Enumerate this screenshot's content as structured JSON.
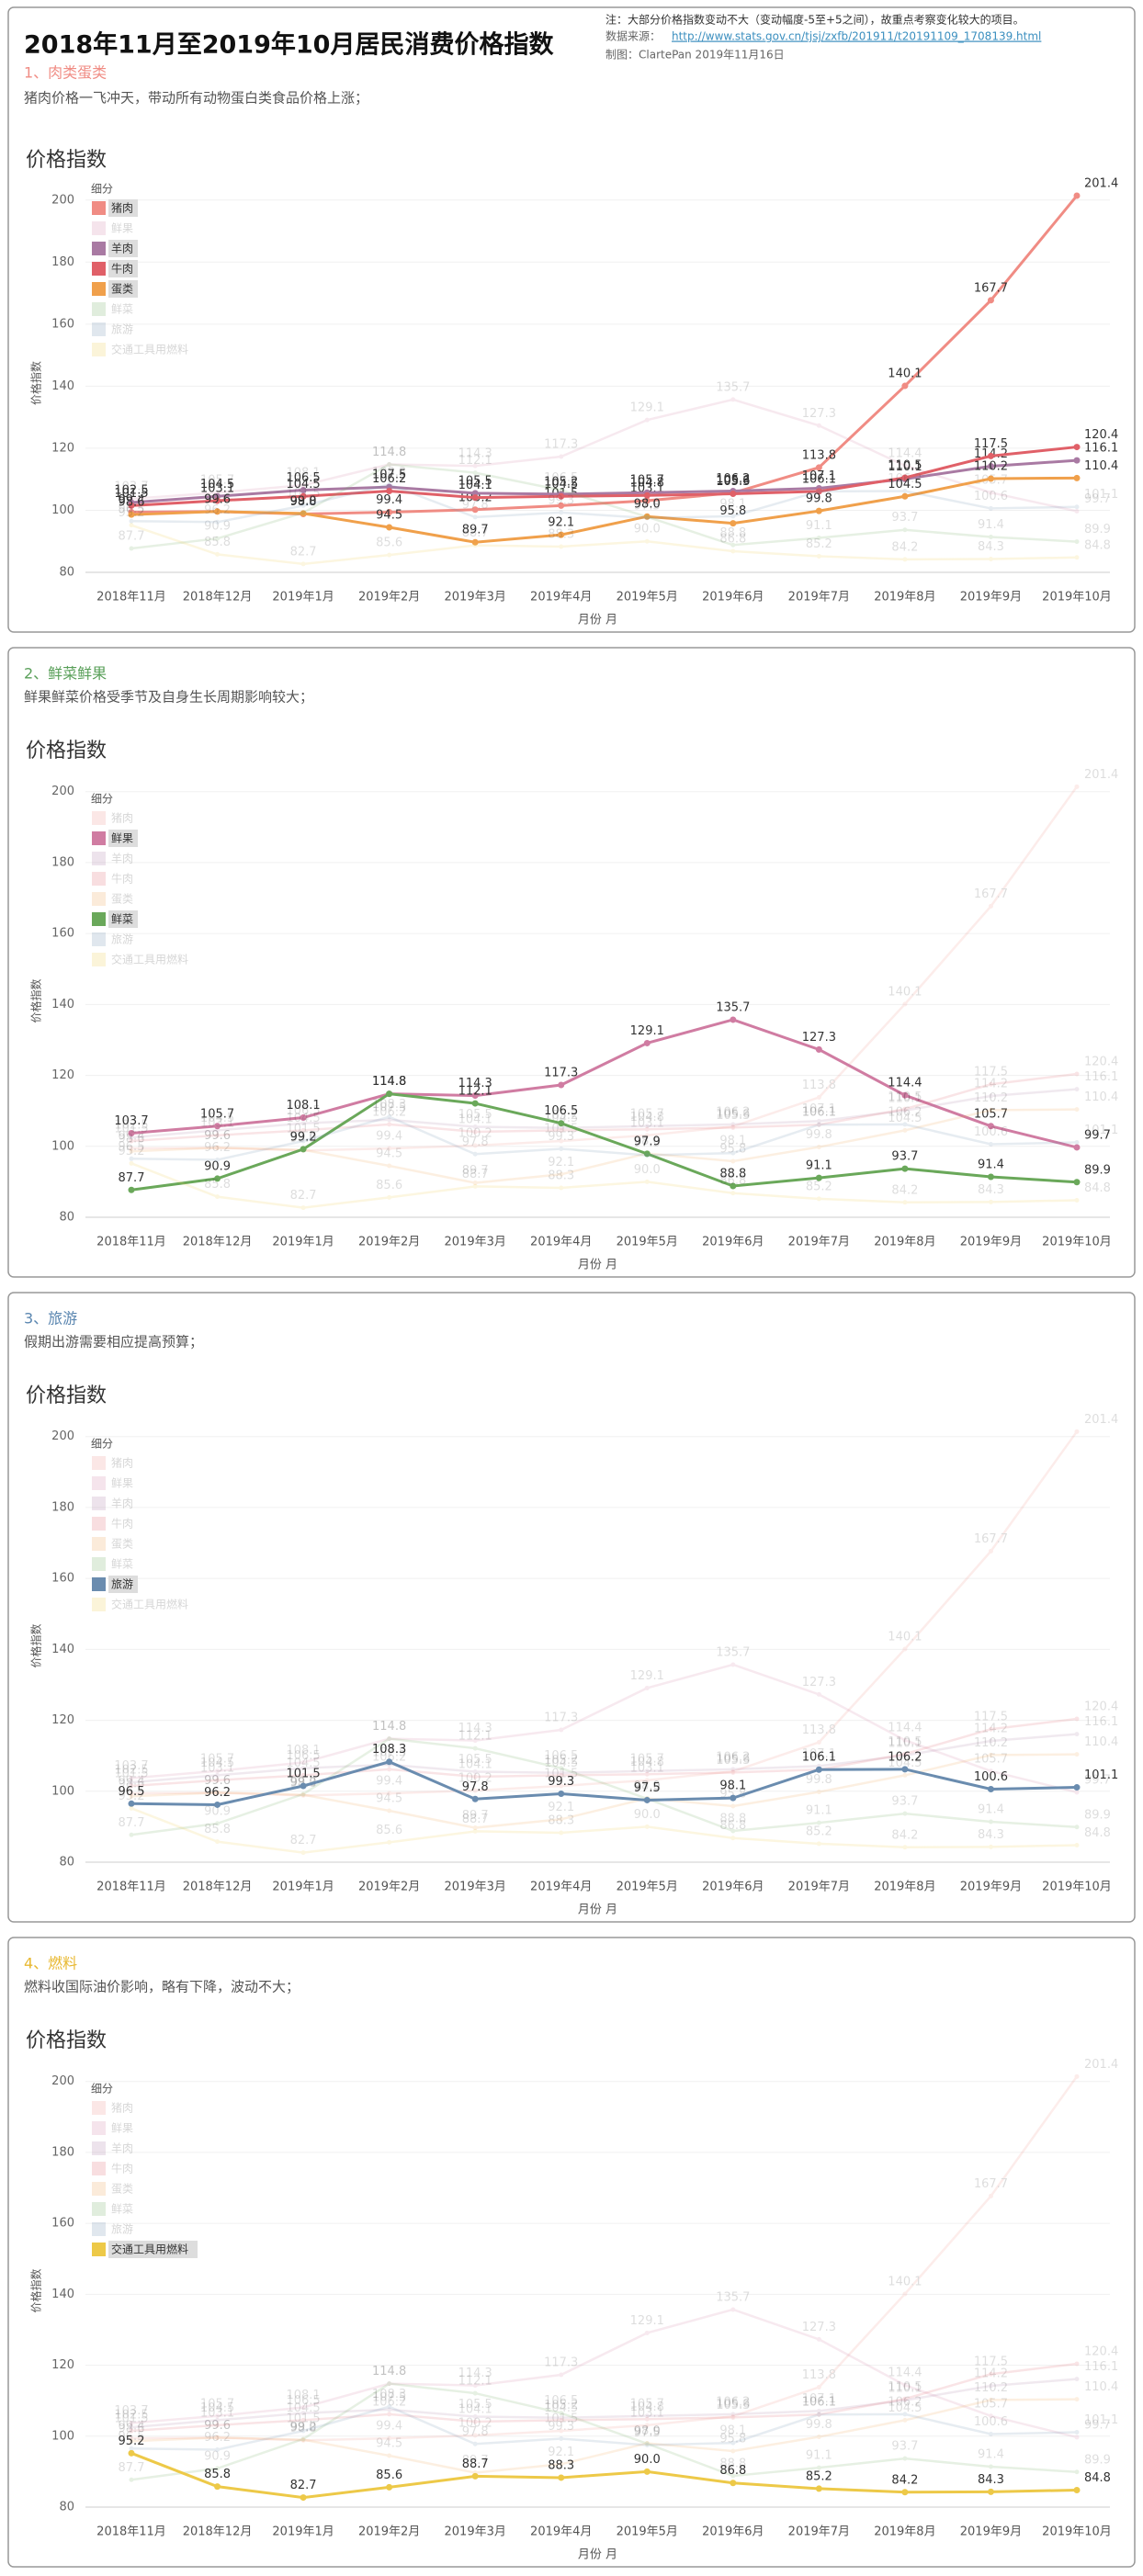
{
  "header": {
    "title": "2018年11月至2019年10月居民消费价格指数",
    "note": "注：大部分价格指数变动不大（变动幅度-5至+5之间），故重点考察变化较大的项目。",
    "source_label": "数据来源：",
    "source_url": "http://www.stats.gov.cn/tjsj/zxfb/201911/t20191109_1708139.html",
    "credit": "制图：ClartePan 2019年11月16日"
  },
  "panels": [
    {
      "heading": "1、肉类蛋类",
      "description": "猪肉价格一飞冲天，带动所有动物蛋白类食品价格上涨；",
      "color": "#f08c84",
      "highlight": [
        0,
        2,
        3,
        4
      ]
    },
    {
      "heading": "2、鲜菜鲜果",
      "description": "鲜果鲜菜价格受季节及自身生长周期影响较大；",
      "color": "#5aa05a",
      "highlight": [
        1,
        5
      ]
    },
    {
      "heading": "3、旅游",
      "description": "假期出游需要相应提高预算；",
      "color": "#5a86b0",
      "highlight": [
        6
      ]
    },
    {
      "heading": "4、燃料",
      "description": "燃料收国际油价影响，略有下降，波动不大；",
      "color": "#e8b830",
      "highlight": [
        7
      ]
    }
  ],
  "chart_data": {
    "type": "line",
    "title": "价格指数",
    "legend_title": "细分",
    "y_label": "价格指数",
    "x_label": "月份 月",
    "categories": [
      "2018年11月",
      "2018年12月",
      "2019年1月",
      "2019年2月",
      "2019年3月",
      "2019年4月",
      "2019年5月",
      "2019年6月",
      "2019年7月",
      "2019年8月",
      "2019年9月",
      "2019年10月"
    ],
    "series": [
      {
        "name": "猪肉",
        "color": "#f08c84",
        "values": [
          99.4,
          99.6,
          98.8,
          99.4,
          100.2,
          101.5,
          103.1,
          105.6,
          113.8,
          140.1,
          167.7,
          201.4
        ]
      },
      {
        "name": "鲜果",
        "color": "#d07ca2",
        "values": [
          103.7,
          105.7,
          108.1,
          114.8,
          114.3,
          117.3,
          129.1,
          135.7,
          127.3,
          114.4,
          105.7,
          99.7
        ]
      },
      {
        "name": "羊肉",
        "color": "#a97aa3",
        "values": [
          102.5,
          104.5,
          106.5,
          107.5,
          105.5,
          105.2,
          105.7,
          106.2,
          107.1,
          110.1,
          114.2,
          116.1
        ]
      },
      {
        "name": "牛肉",
        "color": "#e06068",
        "values": [
          101.5,
          103.1,
          104.5,
          106.2,
          104.1,
          104.5,
          104.8,
          105.3,
          106.1,
          110.5,
          117.5,
          120.4
        ]
      },
      {
        "name": "蛋类",
        "color": "#f0a04b",
        "values": [
          98.6,
          99.6,
          99.0,
          94.5,
          89.7,
          92.1,
          98.0,
          95.8,
          99.8,
          104.5,
          110.2,
          110.4
        ],
        "value_labels": [
          "98.6",
          "99.6",
          "99.0",
          "94.5",
          "89.7",
          "92.1",
          "98.0",
          "95.8",
          "99.8",
          "104.5",
          "110.2",
          "110.4"
        ]
      },
      {
        "name": "鲜菜",
        "color": "#6aa85a",
        "values": [
          87.7,
          90.9,
          99.2,
          114.8,
          112.1,
          106.5,
          97.9,
          88.8,
          91.1,
          93.7,
          91.4,
          89.9
        ]
      },
      {
        "name": "旅游",
        "color": "#6a8caf",
        "values": [
          96.5,
          96.2,
          101.5,
          108.3,
          97.8,
          99.3,
          97.5,
          98.1,
          106.1,
          106.2,
          100.6,
          101.1
        ]
      },
      {
        "name": "交通工具用燃料",
        "color": "#edc948",
        "values": [
          95.2,
          85.8,
          82.7,
          85.6,
          88.7,
          88.3,
          90.0,
          86.8,
          85.2,
          84.2,
          84.3,
          84.8
        ],
        "value_labels": [
          "95.2",
          "85.8",
          "82.7",
          "85.6",
          "88.7",
          "88.3",
          "90.0",
          "86.8",
          "85.2",
          "84.2",
          "84.3",
          "84.8"
        ]
      }
    ],
    "ylim": [
      80,
      202
    ],
    "yticks": [
      80,
      100,
      120,
      140,
      160,
      180,
      200
    ],
    "grid": true
  }
}
